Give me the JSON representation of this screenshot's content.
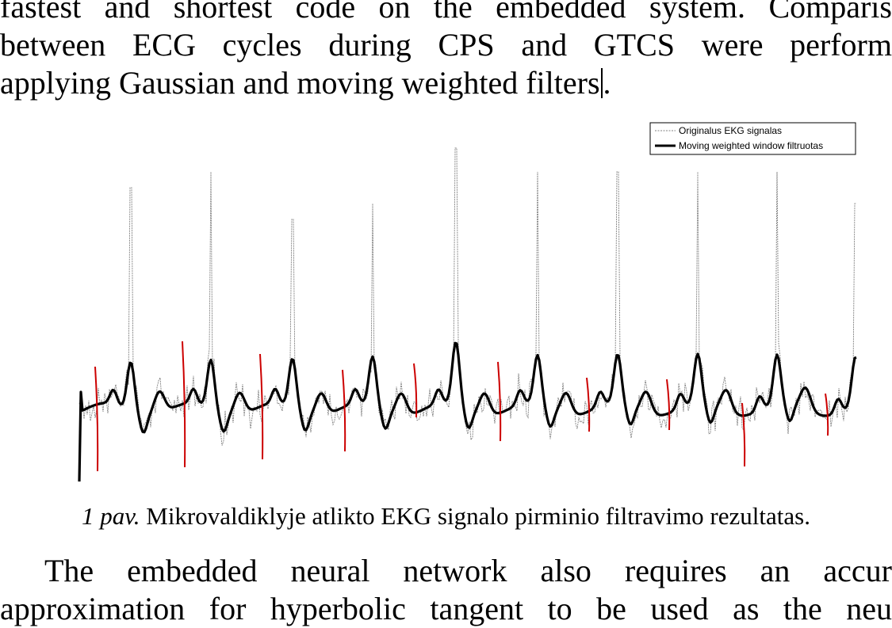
{
  "paragraph_top": {
    "line1": "fastest and shortest code on the embedded system. Comparis",
    "line2": "between ECG cycles during CPS and GTCS were perform",
    "line3": "applying Gaussian and moving weighted filters",
    "line3_end": "."
  },
  "figure": {
    "legend": {
      "original_label": "Originalus EKG signalas",
      "filtered_label": "Moving weighted window filtruotas"
    },
    "colors": {
      "original": "#808080",
      "filtered": "#000000",
      "markers": "#cc0000"
    },
    "chart_data": {
      "type": "line",
      "series": [
        {
          "name": "Originalus EKG signalas"
        },
        {
          "name": "Moving weighted window filtruotas"
        }
      ],
      "grid": false,
      "legend_position": "top-right"
    }
  },
  "caption": {
    "label": "1 pav.",
    "text": " Mikrovaldiklyje atlikto EKG signalo pirminio filtravimo rezultatas."
  },
  "paragraph_bottom": {
    "line1": "The embedded neural network also requires an accur",
    "line2": "approximation for hyperbolic tangent to be used as the neu"
  }
}
